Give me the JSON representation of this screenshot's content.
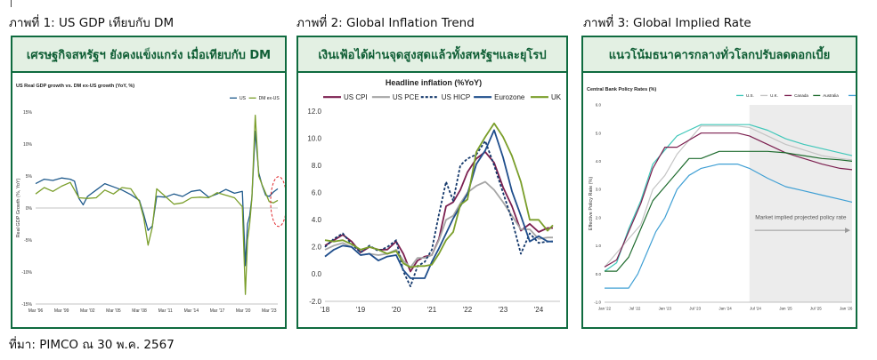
{
  "captions": {
    "fig1": "ภาพที่ 1: US GDP เทียบกับ DM",
    "fig2": "ภาพที่ 2: Global Inflation Trend",
    "fig3": "ภาพที่ 3: Global Implied Rate"
  },
  "panels": {
    "p1_header": "เศรษฐกิจสหรัฐฯ ยังคงแข็งแกร่ง เมื่อเทียบกับ DM",
    "p2_header": "เงินเฟ้อได้ผ่านจุดสูงสุดแล้วทั้งสหรัฐฯและยุโรป",
    "p3_header": "แนวโน้มธนาคารกลางทั่วโลกปรับลดดอกเบี้ย"
  },
  "source": "ที่มา: PIMCO ณ 30 พ.ค. 2567",
  "colors": {
    "border": "#0f6b3f",
    "header_bg": "#e3f0e3",
    "header_text": "#0f5e35",
    "highlight_ellipse": "#e0282d"
  },
  "chart_data": [
    {
      "type": "line",
      "title": "US Real GDP growth vs. DM ex-US growth (YoY, %)",
      "ylabel": "Real GDP Growth (%, YoY)",
      "xlabel": "",
      "ylim": [
        -15,
        15
      ],
      "yticks": [
        "15%",
        "10%",
        "5%",
        "0%",
        "-5%",
        "-10%",
        "-15%"
      ],
      "ytick_values": [
        15,
        10,
        5,
        0,
        -5,
        -10,
        -15
      ],
      "xlim": [
        1996,
        2024
      ],
      "xticks": [
        "Mar '96",
        "Mar '99",
        "Mar '02",
        "Mar '05",
        "Mar '08",
        "Mar '11",
        "Mar '14",
        "Mar '17",
        "Mar '20",
        "Mar '23"
      ],
      "xtick_values": [
        1996,
        1999,
        2002,
        2005,
        2008,
        2011,
        2014,
        2017,
        2020,
        2023
      ],
      "legend": "top-right",
      "grid": false,
      "annotation": "red dashed ellipse around latest values",
      "series": [
        {
          "name": "US",
          "color": "#1f5a8c",
          "x": [
            1996,
            1997,
            1998,
            1999,
            2000,
            2000.5,
            2001,
            2001.5,
            2002,
            2003,
            2004,
            2005,
            2006,
            2007,
            2008,
            2008.5,
            2009,
            2009.5,
            2010,
            2011,
            2012,
            2013,
            2014,
            2015,
            2016,
            2017,
            2018,
            2019,
            2019.9,
            2020.25,
            2020.5,
            2020.75,
            2021,
            2021.4,
            2021.8,
            2022.2,
            2022.6,
            2023,
            2023.5,
            2024
          ],
          "y": [
            3.8,
            4.5,
            4.3,
            4.7,
            4.5,
            4.2,
            1.5,
            0.5,
            1.8,
            2.8,
            3.8,
            3.3,
            2.8,
            2.1,
            1.2,
            -1.0,
            -3.5,
            -2.8,
            1.8,
            1.7,
            2.2,
            1.8,
            2.6,
            2.8,
            1.7,
            2.2,
            2.9,
            2.3,
            2.6,
            -9.0,
            -2.5,
            -1.2,
            1.6,
            12.0,
            5.5,
            3.5,
            2.0,
            1.8,
            2.5,
            3.0
          ]
        },
        {
          "name": "DM ex-US",
          "color": "#7a9e2a",
          "x": [
            1996,
            1997,
            1998,
            1999,
            2000,
            2001,
            2002,
            2003,
            2004,
            2005,
            2006,
            2007,
            2008,
            2008.5,
            2009,
            2009.5,
            2010,
            2011,
            2012,
            2013,
            2014,
            2015,
            2016,
            2017,
            2018,
            2019,
            2019.9,
            2020.25,
            2020.5,
            2020.75,
            2021,
            2021.4,
            2021.8,
            2022.2,
            2022.6,
            2023,
            2023.5,
            2024
          ],
          "y": [
            2.2,
            3.2,
            2.6,
            3.4,
            4.0,
            1.6,
            1.5,
            1.6,
            2.8,
            2.2,
            3.2,
            3.0,
            1.0,
            -1.5,
            -5.8,
            -3.0,
            3.0,
            1.8,
            0.6,
            0.8,
            1.6,
            1.7,
            1.6,
            2.4,
            2.0,
            1.6,
            0.2,
            -13.5,
            -5.0,
            -2.5,
            1.5,
            14.5,
            5.0,
            3.6,
            2.3,
            1.0,
            0.8,
            1.2
          ]
        }
      ]
    },
    {
      "type": "line",
      "title": "Headline inflation (%YoY)",
      "xlabel": "",
      "ylabel": "",
      "ylim": [
        -2.0,
        12.0
      ],
      "yticks": [
        "12.0",
        "10.0",
        "8.0",
        "6.0",
        "4.0",
        "2.0",
        "0.0",
        "-2.0"
      ],
      "ytick_values": [
        12,
        10,
        8,
        6,
        4,
        2,
        0,
        -2
      ],
      "xlim": [
        2018,
        2024.6
      ],
      "xticks": [
        "'18",
        "'19",
        "'20",
        "'21",
        "'22",
        "'23",
        "'24"
      ],
      "xtick_values": [
        2018,
        2019,
        2020,
        2021,
        2022,
        2023,
        2024
      ],
      "legend": "top",
      "grid": false,
      "series": [
        {
          "name": "US CPI",
          "color": "#7b1f4f",
          "dash": "",
          "x": [
            2018,
            2018.25,
            2018.5,
            2018.75,
            2019,
            2019.25,
            2019.5,
            2019.75,
            2020,
            2020.2,
            2020.4,
            2020.6,
            2020.8,
            2021,
            2021.2,
            2021.4,
            2021.6,
            2021.8,
            2022,
            2022.25,
            2022.5,
            2022.75,
            2023,
            2023.25,
            2023.5,
            2023.75,
            2024,
            2024.25,
            2024.4
          ],
          "y": [
            2.1,
            2.5,
            2.9,
            2.4,
            1.6,
            2.0,
            1.8,
            1.8,
            2.4,
            1.5,
            0.2,
            1.0,
            1.3,
            1.4,
            2.6,
            5.0,
            5.3,
            6.2,
            7.5,
            8.5,
            9.0,
            8.2,
            6.4,
            5.0,
            3.2,
            3.7,
            3.1,
            3.4,
            3.4
          ]
        },
        {
          "name": "US PCE",
          "color": "#a6a6a6",
          "dash": "",
          "x": [
            2018,
            2018.25,
            2018.5,
            2018.75,
            2019,
            2019.25,
            2019.5,
            2019.75,
            2020,
            2020.2,
            2020.4,
            2020.6,
            2020.8,
            2021,
            2021.2,
            2021.4,
            2021.6,
            2021.8,
            2022,
            2022.25,
            2022.5,
            2022.75,
            2023,
            2023.25,
            2023.5,
            2023.75,
            2024,
            2024.25,
            2024.4
          ],
          "y": [
            1.8,
            2.1,
            2.3,
            2.0,
            1.4,
            1.5,
            1.4,
            1.5,
            1.8,
            1.0,
            0.5,
            1.2,
            1.2,
            1.4,
            2.5,
            4.0,
            4.3,
            5.2,
            6.0,
            6.5,
            6.8,
            6.2,
            5.3,
            4.3,
            3.3,
            3.3,
            2.6,
            2.7,
            2.7
          ]
        },
        {
          "name": "US HICP",
          "color": "#14386b",
          "dash": "3,2",
          "x": [
            2018,
            2018.25,
            2018.5,
            2018.75,
            2019,
            2019.25,
            2019.5,
            2019.75,
            2020,
            2020.2,
            2020.4,
            2020.6,
            2020.8,
            2021,
            2021.2,
            2021.4,
            2021.6,
            2021.8,
            2022,
            2022.25,
            2022.5,
            2022.75,
            2023,
            2023.25,
            2023.5,
            2023.75,
            2024,
            2024.25,
            2024.4
          ],
          "y": [
            2.0,
            2.6,
            3.0,
            2.2,
            1.6,
            2.1,
            1.7,
            2.0,
            2.5,
            0.2,
            -0.9,
            0.6,
            0.9,
            1.8,
            4.4,
            6.8,
            5.4,
            8.0,
            8.5,
            8.8,
            9.8,
            8.0,
            6.0,
            4.0,
            1.5,
            3.0,
            2.3,
            2.4,
            2.4
          ]
        },
        {
          "name": "Eurozone",
          "color": "#1f4e8c",
          "dash": "",
          "x": [
            2018,
            2018.25,
            2018.5,
            2018.75,
            2019,
            2019.25,
            2019.5,
            2019.75,
            2020,
            2020.2,
            2020.4,
            2020.6,
            2020.8,
            2021,
            2021.2,
            2021.4,
            2021.6,
            2021.8,
            2022,
            2022.25,
            2022.5,
            2022.75,
            2023,
            2023.25,
            2023.5,
            2023.75,
            2024,
            2024.25,
            2024.4
          ],
          "y": [
            1.3,
            1.8,
            2.1,
            2.0,
            1.4,
            1.5,
            1.0,
            1.3,
            1.4,
            0.3,
            -0.3,
            -0.3,
            -0.3,
            0.9,
            1.9,
            3.0,
            4.1,
            5.0,
            5.9,
            8.1,
            9.1,
            10.6,
            8.6,
            6.1,
            4.3,
            2.4,
            2.8,
            2.4,
            2.4
          ]
        },
        {
          "name": "UK",
          "color": "#7a9e2a",
          "dash": "",
          "x": [
            2018,
            2018.25,
            2018.5,
            2018.75,
            2019,
            2019.25,
            2019.5,
            2019.75,
            2020,
            2020.2,
            2020.4,
            2020.6,
            2020.8,
            2021,
            2021.2,
            2021.4,
            2021.6,
            2021.8,
            2022,
            2022.25,
            2022.5,
            2022.75,
            2023,
            2023.25,
            2023.5,
            2023.75,
            2024,
            2024.25,
            2024.4
          ],
          "y": [
            2.5,
            2.4,
            2.5,
            2.2,
            1.8,
            2.0,
            1.8,
            1.5,
            1.7,
            0.8,
            0.5,
            0.6,
            0.6,
            0.7,
            1.5,
            2.5,
            3.1,
            5.1,
            5.5,
            9.0,
            10.1,
            11.1,
            10.1,
            8.7,
            6.8,
            4.0,
            4.0,
            3.2,
            3.6
          ]
        }
      ]
    },
    {
      "type": "line",
      "title": "Central Bank Policy Rates (%)",
      "ylabel": "Effective Policy Rate (%)",
      "xlabel": "",
      "ylim": [
        -1.0,
        6.0
      ],
      "yticks": [
        "6.0",
        "5.0",
        "4.0",
        "3.0",
        "2.0",
        "1.0",
        "0.0",
        "-1.0"
      ],
      "ytick_values": [
        6,
        5,
        4,
        3,
        2,
        1,
        0,
        -1
      ],
      "xlim": [
        2022.0,
        2026.1
      ],
      "xticks": [
        "Jan '22",
        "Jul '22",
        "Jan '23",
        "Jul '23",
        "Jan '24",
        "Jul '24",
        "Jan '25",
        "Jul '25",
        "Jan '26"
      ],
      "xtick_values": [
        2022.0,
        2022.5,
        2023.0,
        2023.5,
        2024.0,
        2024.5,
        2025.0,
        2025.5,
        2026.0
      ],
      "legend": "top-right",
      "grid": false,
      "shaded_region_start": 2024.4,
      "shaded_region_label": "Market implied projected policy rate",
      "series": [
        {
          "name": "U.S.",
          "color": "#3fc7b9",
          "x": [
            2022.0,
            2022.2,
            2022.4,
            2022.6,
            2022.8,
            2023.0,
            2023.2,
            2023.4,
            2023.6,
            2023.9,
            2024.2,
            2024.4,
            2024.7,
            2025.0,
            2025.3,
            2025.6,
            2025.9,
            2026.1
          ],
          "y": [
            0.1,
            0.4,
            1.6,
            2.6,
            3.9,
            4.4,
            4.9,
            5.1,
            5.3,
            5.3,
            5.3,
            5.3,
            5.1,
            4.8,
            4.6,
            4.45,
            4.3,
            4.2
          ]
        },
        {
          "name": "U.K.",
          "color": "#c4c4c4",
          "x": [
            2022.0,
            2022.2,
            2022.4,
            2022.6,
            2022.8,
            2023.0,
            2023.2,
            2023.4,
            2023.6,
            2023.9,
            2024.2,
            2024.4,
            2024.7,
            2025.0,
            2025.3,
            2025.6,
            2025.9,
            2026.1
          ],
          "y": [
            0.25,
            0.75,
            1.25,
            1.75,
            3.0,
            3.5,
            4.25,
            4.75,
            5.25,
            5.25,
            5.25,
            5.2,
            4.9,
            4.6,
            4.4,
            4.2,
            4.1,
            4.05
          ]
        },
        {
          "name": "Canada",
          "color": "#7b1f4f",
          "x": [
            2022.0,
            2022.2,
            2022.4,
            2022.6,
            2022.8,
            2023.0,
            2023.2,
            2023.4,
            2023.6,
            2023.9,
            2024.2,
            2024.4,
            2024.7,
            2025.0,
            2025.3,
            2025.6,
            2025.9,
            2026.1
          ],
          "y": [
            0.25,
            0.5,
            1.5,
            2.5,
            3.75,
            4.5,
            4.5,
            4.75,
            5.0,
            5.0,
            5.0,
            4.9,
            4.6,
            4.3,
            4.1,
            3.9,
            3.75,
            3.7
          ]
        },
        {
          "name": "Australia",
          "color": "#1e6b2e",
          "x": [
            2022.0,
            2022.2,
            2022.4,
            2022.6,
            2022.8,
            2023.0,
            2023.2,
            2023.4,
            2023.6,
            2023.9,
            2024.2,
            2024.4,
            2024.7,
            2025.0,
            2025.3,
            2025.6,
            2025.9,
            2026.1
          ],
          "y": [
            0.1,
            0.1,
            0.6,
            1.6,
            2.6,
            3.1,
            3.6,
            4.1,
            4.1,
            4.35,
            4.35,
            4.35,
            4.35,
            4.3,
            4.2,
            4.1,
            4.05,
            4.0
          ]
        },
        {
          "name": "ECB",
          "color": "#3f9fd4",
          "x": [
            2022.0,
            2022.2,
            2022.4,
            2022.55,
            2022.7,
            2022.85,
            2023.0,
            2023.2,
            2023.4,
            2023.6,
            2023.9,
            2024.2,
            2024.4,
            2024.7,
            2025.0,
            2025.3,
            2025.6,
            2025.9,
            2026.1
          ],
          "y": [
            -0.5,
            -0.5,
            -0.5,
            0.0,
            0.75,
            1.5,
            2.0,
            3.0,
            3.5,
            3.75,
            3.9,
            3.9,
            3.75,
            3.4,
            3.1,
            2.95,
            2.8,
            2.65,
            2.55
          ]
        }
      ]
    }
  ]
}
